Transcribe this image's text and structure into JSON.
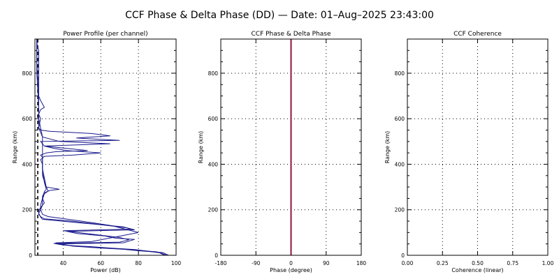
{
  "figure": {
    "title": "CCF Phase & Delta Phase (DD) — Date: 01–Aug–2025 23:43:00"
  },
  "chart_data": [
    {
      "type": "line",
      "title": "Power Profile (per channel)",
      "xlabel": "Power (dB)",
      "ylabel": "Range (km)",
      "xlim": [
        25,
        100
      ],
      "ylim": [
        0,
        950
      ],
      "xticks": [
        40,
        60,
        80,
        100
      ],
      "yticks": [
        0,
        200,
        400,
        600,
        800
      ],
      "grid": true,
      "colors": {
        "series": "#1a1a8c",
        "noise": "#000000"
      },
      "noise_floor": {
        "x": 26.5,
        "style": "dashed"
      },
      "series": [
        {
          "x": [
            95,
            92,
            85,
            78,
            65,
            55,
            45,
            37,
            72,
            78,
            68,
            62,
            48,
            42,
            78,
            74,
            45,
            30,
            28,
            27,
            27,
            28,
            30,
            29,
            29,
            30,
            33,
            38,
            31,
            30,
            29,
            29,
            28,
            30,
            45,
            60,
            42,
            35,
            30,
            28,
            70,
            47,
            65,
            55,
            33,
            28,
            27,
            28,
            27,
            28,
            30,
            29,
            28,
            27,
            27,
            27,
            27,
            27,
            27,
            26,
            26
          ],
          "y": [
            0,
            10,
            18,
            25,
            32,
            38,
            42,
            50,
            55,
            70,
            75,
            85,
            95,
            105,
            112,
            120,
            150,
            160,
            170,
            180,
            195,
            210,
            230,
            250,
            260,
            275,
            285,
            290,
            300,
            340,
            380,
            400,
            420,
            435,
            440,
            450,
            460,
            470,
            480,
            500,
            505,
            515,
            525,
            535,
            545,
            550,
            560,
            600,
            620,
            640,
            650,
            665,
            680,
            700,
            750,
            800,
            850,
            880,
            900,
            930,
            950
          ]
        },
        {
          "x": [
            96,
            93,
            80,
            70,
            55,
            48,
            40,
            35,
            70,
            75,
            70,
            60,
            50,
            40,
            76,
            72,
            42,
            29,
            28,
            27,
            28,
            29,
            29,
            30,
            32,
            31,
            29,
            29,
            29,
            28,
            31,
            36,
            53,
            30,
            65,
            38,
            29,
            27,
            27,
            26,
            26
          ],
          "y": [
            0,
            12,
            20,
            28,
            35,
            40,
            45,
            52,
            58,
            68,
            78,
            88,
            98,
            108,
            115,
            125,
            148,
            158,
            168,
            185,
            200,
            220,
            245,
            270,
            282,
            300,
            350,
            400,
            430,
            440,
            450,
            455,
            460,
            480,
            490,
            500,
            520,
            560,
            650,
            800,
            950
          ]
        },
        {
          "x": [
            94,
            90,
            75,
            60,
            45,
            40,
            36,
            55,
            80,
            66,
            50,
            32,
            29,
            28,
            28,
            29,
            30,
            31,
            30,
            29,
            29,
            29,
            29,
            28,
            27,
            27,
            26,
            26
          ],
          "y": [
            0,
            15,
            25,
            32,
            40,
            48,
            55,
            60,
            100,
            130,
            150,
            170,
            180,
            200,
            220,
            250,
            280,
            290,
            320,
            380,
            420,
            450,
            520,
            560,
            600,
            700,
            850,
            950
          ]
        }
      ]
    },
    {
      "type": "line",
      "title": "CCF Phase & Delta Phase",
      "xlabel": "Phase (degree)",
      "ylabel": "Range (km)",
      "xlim": [
        -180,
        180
      ],
      "ylim": [
        0,
        950
      ],
      "xticks": [
        -180,
        -90,
        0,
        90,
        180
      ],
      "yticks": [
        0,
        200,
        400,
        600,
        800
      ],
      "grid": true,
      "colors": {
        "series": "#8b1538"
      },
      "series": [
        {
          "x": [
            0,
            0
          ],
          "y": [
            0,
            950
          ]
        }
      ]
    },
    {
      "type": "line",
      "title": "CCF Coherence",
      "xlabel": "Coherence (linear)",
      "ylabel": "Range (km)",
      "xlim": [
        0,
        1
      ],
      "ylim": [
        0,
        950
      ],
      "xticks": [
        0.0,
        0.25,
        0.5,
        0.75,
        1.0
      ],
      "yticks": [
        0,
        200,
        400,
        600,
        800
      ],
      "grid": true,
      "series": []
    }
  ]
}
